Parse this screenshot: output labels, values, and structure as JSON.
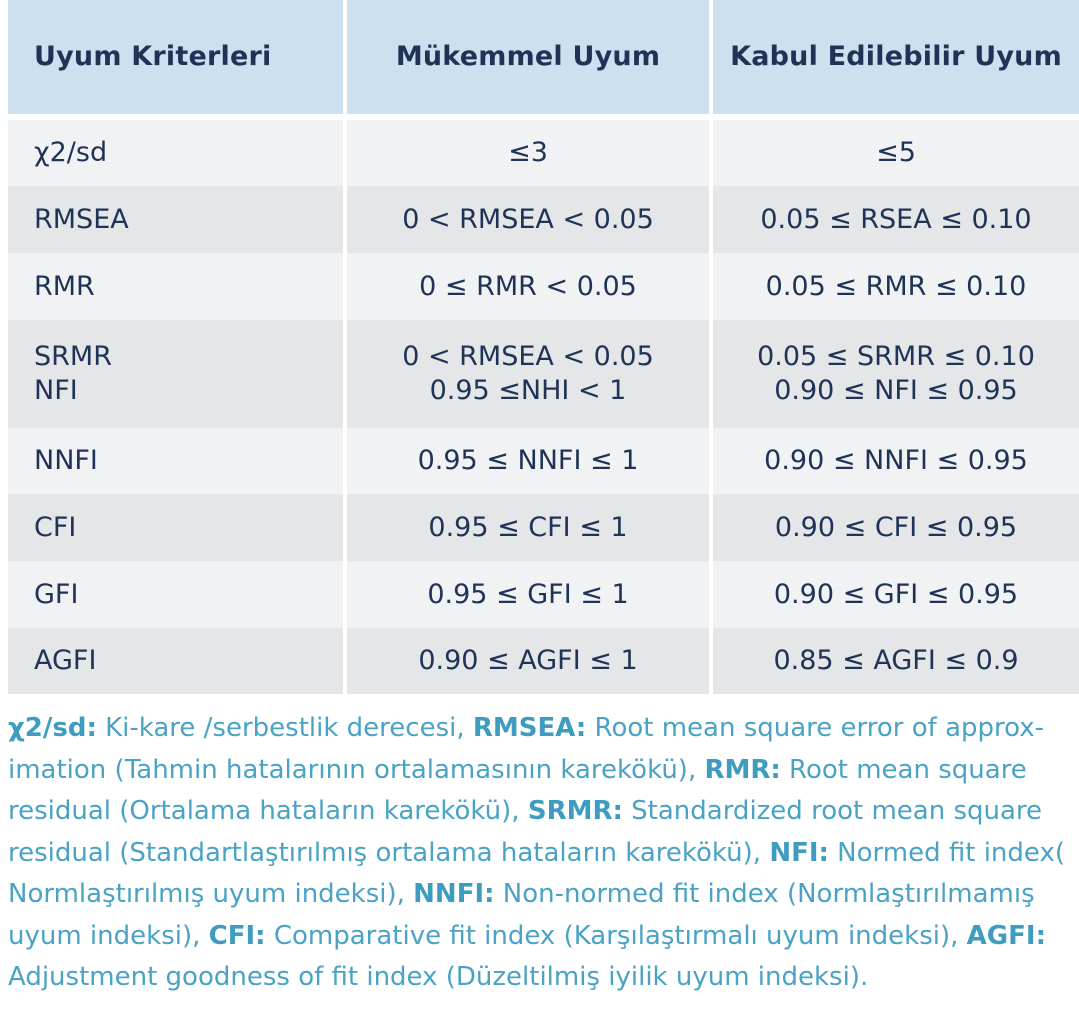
{
  "table": {
    "headers": [
      "Uyum Kriterleri",
      "Mükemmel Uyum",
      "Kabul Edilebilir Uyum"
    ],
    "rows": [
      {
        "criterion": [
          "χ2/sd"
        ],
        "perfect": [
          "≤3"
        ],
        "acceptable": [
          "≤5"
        ]
      },
      {
        "criterion": [
          "RMSEA"
        ],
        "perfect": [
          "0 < RMSEA < 0.05"
        ],
        "acceptable": [
          "0.05 ≤ RSEA ≤ 0.10"
        ]
      },
      {
        "criterion": [
          "RMR"
        ],
        "perfect": [
          "0 ≤ RMR < 0.05"
        ],
        "acceptable": [
          "0.05 ≤ RMR ≤ 0.10"
        ]
      },
      {
        "criterion": [
          "SRMR",
          "NFI"
        ],
        "perfect": [
          "0 < RMSEA < 0.05",
          "0.95 ≤NHI < 1"
        ],
        "acceptable": [
          "0.05 ≤ SRMR ≤ 0.10",
          "0.90 ≤ NFI ≤ 0.95"
        ]
      },
      {
        "criterion": [
          "NNFI"
        ],
        "perfect": [
          "0.95 ≤ NNFI ≤ 1"
        ],
        "acceptable": [
          "0.90 ≤ NNFI ≤ 0.95"
        ]
      },
      {
        "criterion": [
          "CFI"
        ],
        "perfect": [
          "0.95 ≤ CFI ≤ 1"
        ],
        "acceptable": [
          "0.90 ≤ CFI ≤ 0.95"
        ]
      },
      {
        "criterion": [
          "GFI"
        ],
        "perfect": [
          "0.95 ≤ GFI ≤ 1"
        ],
        "acceptable": [
          "0.90 ≤ GFI ≤ 0.95"
        ]
      },
      {
        "criterion": [
          "AGFI"
        ],
        "perfect": [
          "0.90 ≤ AGFI ≤ 1"
        ],
        "acceptable": [
          "0.85 ≤ AGFI ≤ 0.9"
        ]
      }
    ]
  },
  "legend": [
    {
      "abbr": "χ2/sd:",
      "text": " Ki-kare /serbestlik derecesi, "
    },
    {
      "abbr": "RMSEA:",
      "text": " Root mean square error of approx-imation (Tahmin hatalarının ortalamasının karekökü), "
    },
    {
      "abbr": "RMR:",
      "text": " Root mean square residual (Ortalama hataların karekökü), "
    },
    {
      "abbr": "SRMR:",
      "text": " Standardized root mean square residual (Standartlaştırılmış ortalama hataların karekökü), "
    },
    {
      "abbr": "NFI:",
      "text": " Normed fit index( Normlaştırılmış uyum indeksi), "
    },
    {
      "abbr": "NNFI:",
      "text": " Non-normed fit index (Normlaştırılmamış uyum indeksi), "
    },
    {
      "abbr": "CFI:",
      "text": " Comparative fit index (Karşılaştırmalı uyum indeksi), "
    },
    {
      "abbr": "AGFI:",
      "text": " Adjustment goodness of fit index (Düzeltilmiş iyilik uyum indeksi)."
    }
  ],
  "colors": {
    "header_bg": "#cde0ef",
    "row_light": "#f1f2f3",
    "row_dark": "#e4e6e8",
    "text_dark": "#1f3356",
    "legend_text": "#4aa3c4"
  }
}
